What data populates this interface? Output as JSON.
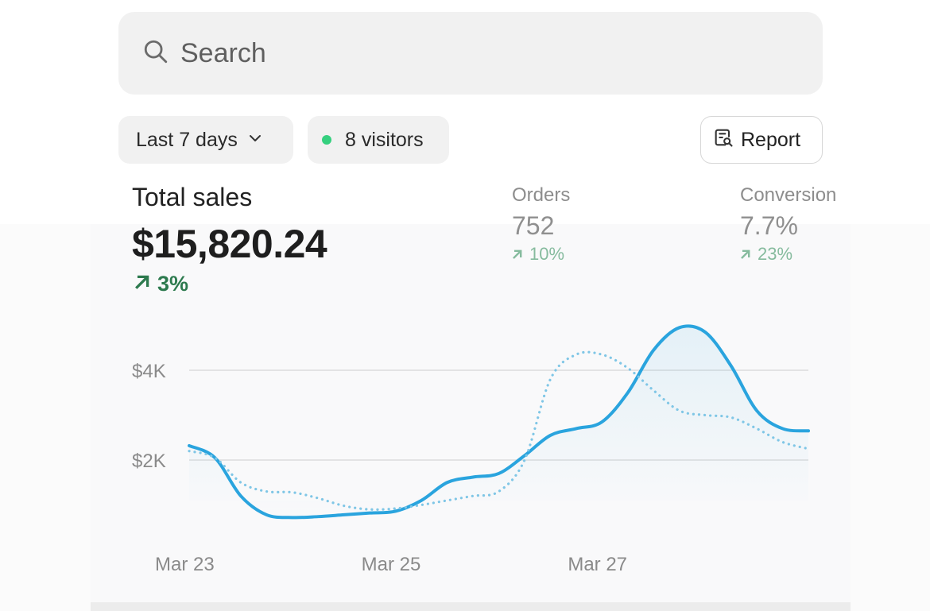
{
  "search": {
    "placeholder": "Search"
  },
  "filters": {
    "range_label": "Last 7 days",
    "visitors_label": "8 visitors",
    "report_label": "Report"
  },
  "metrics": {
    "total_sales": {
      "label": "Total sales",
      "value": "$15,820.24",
      "change": "3%"
    },
    "orders": {
      "label": "Orders",
      "value": "752",
      "change": "10%"
    },
    "conversion": {
      "label": "Conversion",
      "value": "7.7%",
      "change": "23%"
    }
  },
  "colors": {
    "accent": "#2aa4de",
    "positive": "#2d7a4e",
    "visitors_dot": "#35d07f"
  },
  "chart_data": {
    "type": "line",
    "y_ticks": [
      {
        "value": 2000,
        "label": "$2K"
      },
      {
        "value": 4000,
        "label": "$4K"
      }
    ],
    "x_ticks": [
      {
        "x": 0,
        "label": "Mar 23"
      },
      {
        "x": 2,
        "label": "Mar 25"
      },
      {
        "x": 4,
        "label": "Mar 27"
      }
    ],
    "xlim": [
      0,
      6
    ],
    "ylim": [
      0,
      5000
    ],
    "grid": true,
    "series": [
      {
        "style": "solid",
        "color": "#2aa4de",
        "x": [
          0,
          0.25,
          0.5,
          0.75,
          1,
          1.25,
          1.5,
          1.75,
          2,
          2.25,
          2.5,
          2.75,
          3,
          3.25,
          3.5,
          3.75,
          4,
          4.25,
          4.5,
          4.75,
          5,
          5.25,
          5.5,
          5.75,
          6
        ],
        "y": [
          2320,
          2050,
          1200,
          780,
          720,
          740,
          780,
          820,
          860,
          1100,
          1500,
          1620,
          1700,
          2100,
          2550,
          2700,
          2850,
          3500,
          4450,
          4950,
          4850,
          4100,
          3100,
          2700,
          2650
        ]
      },
      {
        "style": "dotted",
        "color": "#7fc6e6",
        "x": [
          0,
          0.25,
          0.5,
          0.75,
          1,
          1.25,
          1.5,
          1.75,
          2,
          2.25,
          2.5,
          2.75,
          3,
          3.25,
          3.5,
          3.75,
          4,
          4.25,
          4.5,
          4.75,
          5,
          5.25,
          5.5,
          5.75,
          6
        ],
        "y": [
          2200,
          2050,
          1500,
          1300,
          1280,
          1150,
          980,
          900,
          920,
          1000,
          1100,
          1200,
          1300,
          2000,
          3800,
          4350,
          4350,
          4050,
          3550,
          3100,
          3000,
          2950,
          2700,
          2400,
          2250
        ]
      }
    ]
  }
}
